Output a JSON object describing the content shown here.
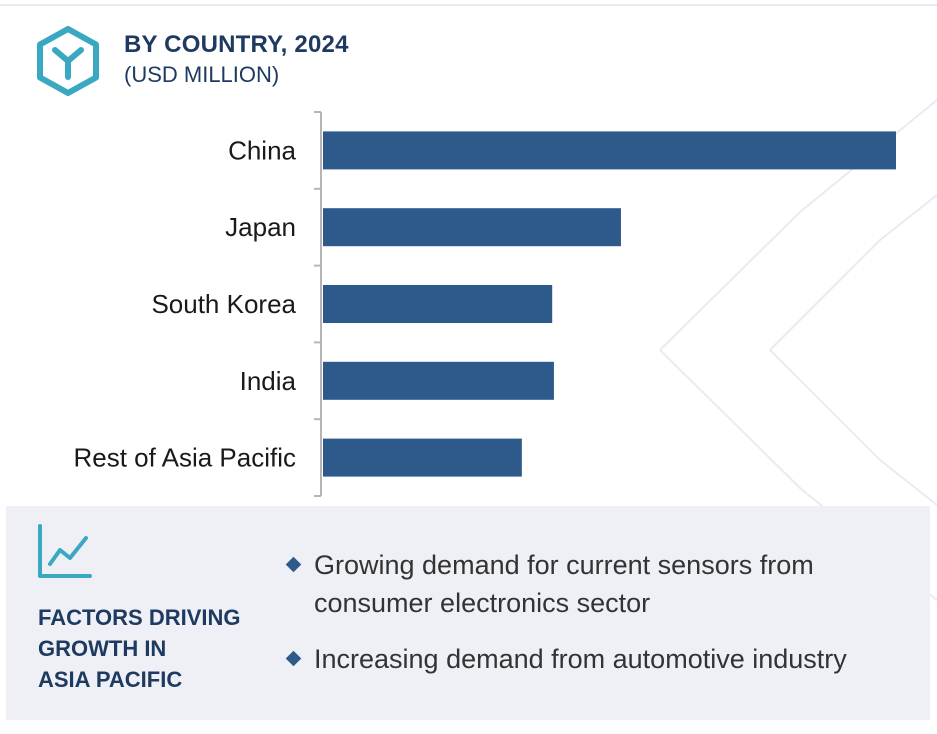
{
  "header": {
    "title": "BY COUNTRY, 2024",
    "subtitle": "(USD MILLION)"
  },
  "colors": {
    "bar": "#2d5a8a",
    "accent": "#3aa8c1",
    "heading": "#1f3a60",
    "panel_bg": "#eef0f6"
  },
  "icons": {
    "logo": "hexagon-y-logo-icon",
    "factors": "line-chart-icon",
    "bullet": "diamond-bullet-icon"
  },
  "chart_data": {
    "type": "bar",
    "orientation": "horizontal",
    "title": "BY COUNTRY, 2024",
    "unit": "(USD MILLION)",
    "categories": [
      "China",
      "Japan",
      "South Korea",
      "India",
      "Rest of Asia Pacific"
    ],
    "values": [
      100,
      52,
      40,
      40.3,
      34.7
    ],
    "xlim": [
      0,
      100
    ],
    "grid": false,
    "legend": "none",
    "value_labels": false
  },
  "factors": {
    "title_lines": [
      "FACTORS DRIVING",
      "GROWTH IN",
      "ASIA PACIFIC"
    ],
    "items": [
      "Growing demand for current sensors from consumer electronics sector",
      "Increasing demand from automotive industry"
    ]
  }
}
